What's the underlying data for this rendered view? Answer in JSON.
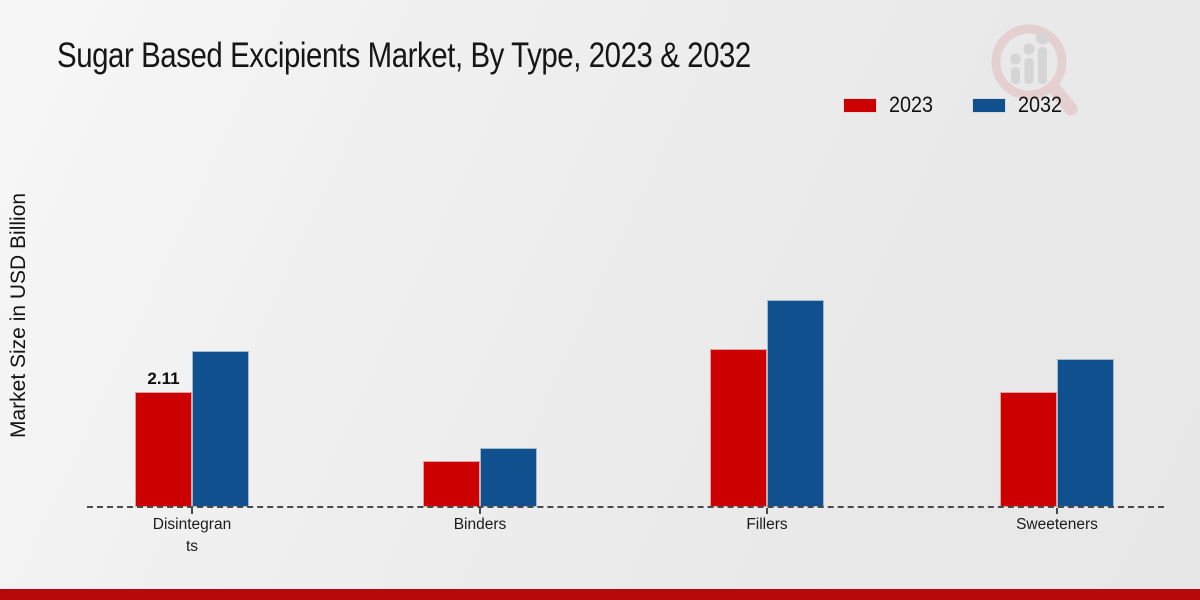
{
  "page": {
    "title": "Sugar Based Excipients Market, By Type, 2023 & 2032",
    "ylabel": "Market Size in USD Billion",
    "footer_bar_color": "#b70909"
  },
  "legend": {
    "items": [
      {
        "label": "2023",
        "color": "#cc0001"
      },
      {
        "label": "2032",
        "color": "#10508f"
      }
    ]
  },
  "logo": {
    "name": "magnifier-bar-chart-watermark"
  },
  "chart_data": {
    "type": "bar",
    "title": "Sugar Based Excipients Market, By Type, 2023 & 2032",
    "xlabel": "",
    "ylabel": "Market Size in USD Billion",
    "categories": [
      "Disintegrants",
      "Binders",
      "Fillers",
      "Sweeteners"
    ],
    "category_display_lines": [
      [
        "Disintegran",
        "ts"
      ],
      [
        "Binders"
      ],
      [
        "Fillers"
      ],
      [
        "Sweeteners"
      ]
    ],
    "series": [
      {
        "name": "2023",
        "color": "#cc0001",
        "values": [
          2.11,
          0.84,
          2.9,
          2.11
        ]
      },
      {
        "name": "2032",
        "color": "#10508f",
        "values": [
          2.86,
          1.08,
          3.8,
          2.71
        ]
      }
    ],
    "bar_value_labels": [
      {
        "category": "Disintegrants",
        "series": "2023",
        "text": "2.11"
      }
    ],
    "ylim": [
      0,
      4.2
    ],
    "grid": false,
    "legend_position": "top-right",
    "baseline_style": "dashed",
    "axis_tick_labels_shown": "x-only"
  }
}
